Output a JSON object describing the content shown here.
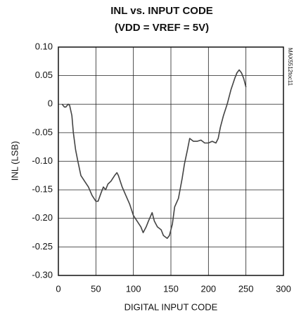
{
  "chart_data": {
    "type": "line",
    "title": "INL vs. INPUT CODE",
    "subtitle": "(VDD = VREF = 5V)",
    "x_label": "DIGITAL INPUT CODE",
    "y_label": "INL (LSB)",
    "annotation": "MAX5512toc11",
    "xlim": [
      0,
      300
    ],
    "ylim": [
      -0.3,
      0.1
    ],
    "xticks": [
      0,
      50,
      100,
      150,
      200,
      250,
      300
    ],
    "yticks": [
      {
        "value": 0.1,
        "label": "0.10"
      },
      0.05,
      0,
      -0.05,
      {
        "value": -0.1,
        "label": "-0.10"
      },
      -0.15,
      {
        "value": -0.2,
        "label": "-0.20"
      },
      -0.25,
      {
        "value": -0.3,
        "label": "-0.30"
      }
    ],
    "grid": true,
    "series": [
      {
        "color": "#444444",
        "x": [
          5,
          8,
          10,
          13,
          15,
          18,
          20,
          23,
          26,
          30,
          35,
          40,
          45,
          50,
          53,
          57,
          60,
          63,
          66,
          70,
          75,
          78,
          80,
          85,
          90,
          95,
          100,
          105,
          110,
          113,
          117,
          120,
          125,
          128,
          132,
          137,
          140,
          145,
          148,
          152,
          155,
          160,
          165,
          168,
          172,
          175,
          180,
          185,
          190,
          195,
          200,
          205,
          210,
          213,
          216,
          220,
          225,
          230,
          235,
          238,
          241,
          244,
          247,
          250
        ],
        "values": [
          0.0,
          -0.005,
          -0.005,
          0.0,
          -0.002,
          -0.02,
          -0.05,
          -0.08,
          -0.1,
          -0.125,
          -0.135,
          -0.145,
          -0.16,
          -0.17,
          -0.17,
          -0.155,
          -0.145,
          -0.15,
          -0.14,
          -0.135,
          -0.125,
          -0.12,
          -0.125,
          -0.145,
          -0.16,
          -0.175,
          -0.195,
          -0.205,
          -0.215,
          -0.225,
          -0.215,
          -0.205,
          -0.19,
          -0.205,
          -0.215,
          -0.22,
          -0.23,
          -0.235,
          -0.23,
          -0.21,
          -0.18,
          -0.165,
          -0.13,
          -0.105,
          -0.08,
          -0.06,
          -0.065,
          -0.065,
          -0.063,
          -0.068,
          -0.068,
          -0.065,
          -0.068,
          -0.06,
          -0.04,
          -0.02,
          0.0,
          0.025,
          0.045,
          0.055,
          0.06,
          0.055,
          0.045,
          0.03
        ]
      }
    ]
  }
}
